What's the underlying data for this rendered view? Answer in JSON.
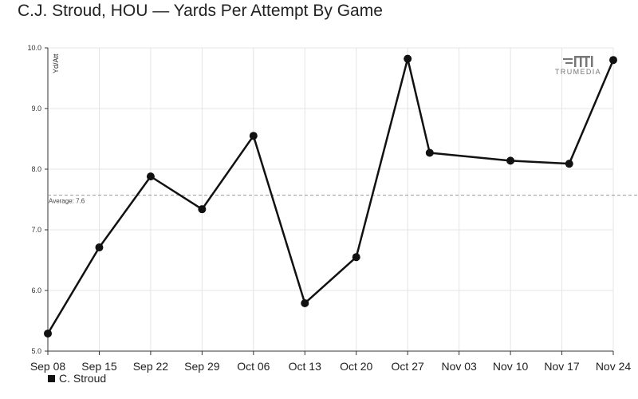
{
  "title": "C.J. Stroud, HOU — Yards Per Attempt By Game",
  "watermark": {
    "text": "TRUMEDIA",
    "icon": "trumedia-logo-icon"
  },
  "chart_data": {
    "type": "line",
    "title": "C.J. Stroud, HOU — Yards Per Attempt By Game",
    "ylabel": "Yd/Att",
    "xlabel": "",
    "x_tick_labels": [
      "Sep 08",
      "Sep 15",
      "Sep 22",
      "Sep 29",
      "Oct 06",
      "Oct 13",
      "Oct 20",
      "Oct 27",
      "Nov 03",
      "Nov 10",
      "Nov 17",
      "Nov 24"
    ],
    "x_domain": [
      "2024-09-08",
      "2024-11-24"
    ],
    "ylim": [
      5.0,
      10.0
    ],
    "y_ticks": [
      "5.0",
      "6.0",
      "7.0",
      "8.0",
      "9.0",
      "10.0"
    ],
    "grid": true,
    "legend": {
      "position": "bottom-left",
      "entries": [
        "C. Stroud"
      ]
    },
    "series": [
      {
        "name": "C. Stroud",
        "color": "#111111",
        "points": [
          {
            "x": "2024-09-08",
            "y": 5.29
          },
          {
            "x": "2024-09-15",
            "y": 6.71
          },
          {
            "x": "2024-09-22",
            "y": 7.88
          },
          {
            "x": "2024-09-29",
            "y": 7.34
          },
          {
            "x": "2024-10-06",
            "y": 8.55
          },
          {
            "x": "2024-10-13",
            "y": 5.79
          },
          {
            "x": "2024-10-20",
            "y": 6.55
          },
          {
            "x": "2024-10-27",
            "y": 9.82
          },
          {
            "x": "2024-10-30",
            "y": 8.27
          },
          {
            "x": "2024-11-10",
            "y": 8.14
          },
          {
            "x": "2024-11-18",
            "y": 8.09
          },
          {
            "x": "2024-11-24",
            "y": 9.8
          }
        ]
      }
    ],
    "reference_line": {
      "label": "Average: 7.6",
      "value": 7.57
    }
  }
}
